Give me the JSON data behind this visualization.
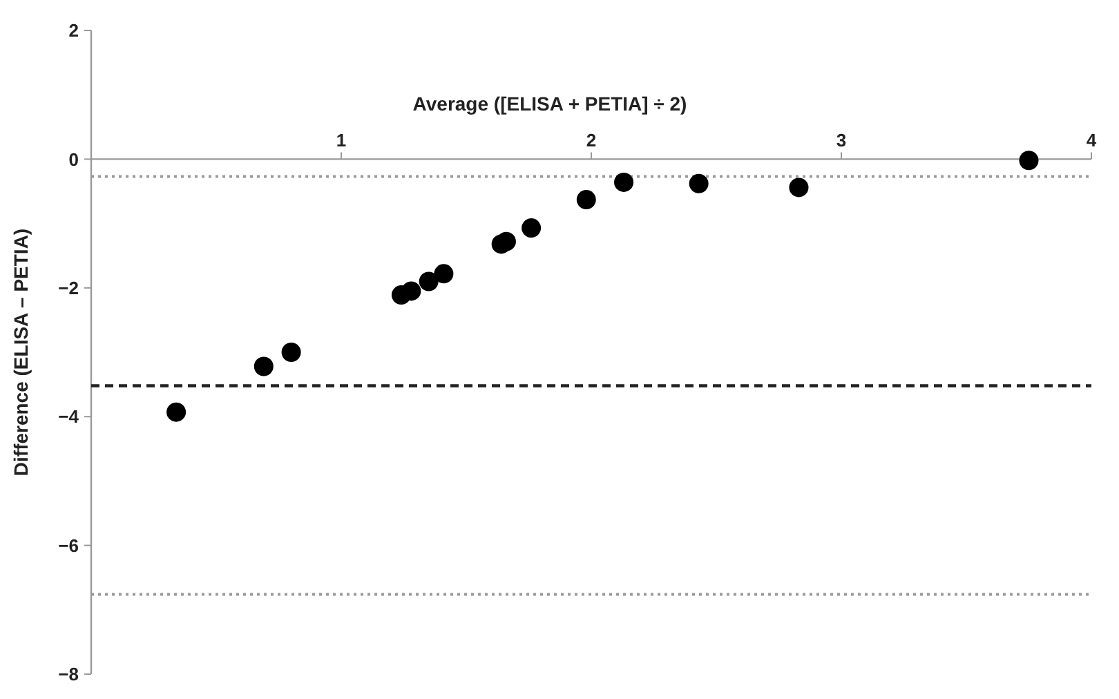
{
  "chart_data": {
    "type": "scatter",
    "xlabel": "Average ([ELISA + PETIA] ÷ 2)",
    "ylabel": "Difference (ELISA – PETIA)",
    "x": [
      0.34,
      0.69,
      0.8,
      1.24,
      1.28,
      1.35,
      1.41,
      1.64,
      1.66,
      1.76,
      1.98,
      2.13,
      2.43,
      2.83,
      3.75
    ],
    "series": [
      {
        "color": "#000000",
        "values": [
          -3.93,
          -3.22,
          -3.0,
          -2.11,
          -2.05,
          -1.9,
          -1.78,
          -1.32,
          -1.28,
          -1.07,
          -0.63,
          -0.36,
          -0.38,
          -0.44,
          -0.02
        ]
      }
    ],
    "xlim": [
      0,
      4
    ],
    "xticks": [
      1,
      2,
      3,
      4
    ],
    "ylim": [
      -8,
      2
    ],
    "yticks": [
      2,
      0,
      {
        "value": -2,
        "label": "−2"
      },
      {
        "value": -4,
        "label": "−4"
      },
      {
        "value": -6,
        "label": "−6"
      },
      {
        "value": -8,
        "label": "−8"
      }
    ],
    "marker": "circle",
    "grid": false,
    "ref_lines": [
      {
        "axis": "y",
        "value": -0.27,
        "color": "#999999",
        "line_style": "dotted"
      },
      {
        "axis": "y",
        "value": -3.52,
        "color": "#222222",
        "line_style": "dashed"
      },
      {
        "axis": "y",
        "value": -6.76,
        "color": "#999999",
        "line_style": "dotted"
      }
    ]
  }
}
